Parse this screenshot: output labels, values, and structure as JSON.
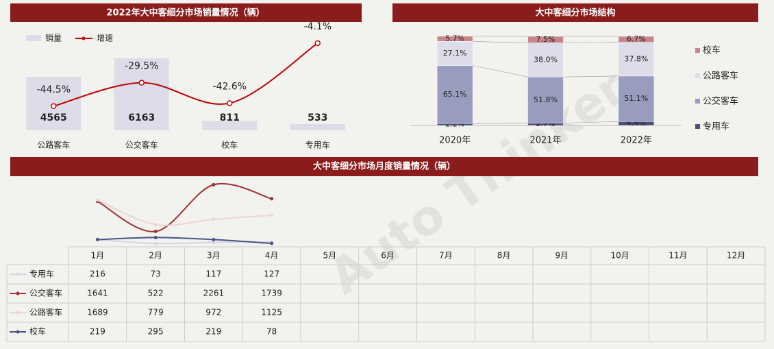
{
  "watermark": "Auto Thinker",
  "chart_data": [
    {
      "type": "bar",
      "title": "2022年大中客细分市场销量情况（辆）",
      "categories": [
        "公路客车",
        "公交客车",
        "校车",
        "专用车"
      ],
      "ylim": [
        0,
        8800
      ],
      "y2lim": [
        -60,
        6
      ],
      "series": [
        {
          "name": "销量",
          "type": "bar",
          "color": "#dcdde8",
          "values": [
            4565,
            6163,
            811,
            533
          ]
        },
        {
          "name": "增速",
          "type": "line",
          "axis": "y2",
          "color": "#c00000",
          "values": [
            -44.5,
            -29.5,
            -42.6,
            -4.1
          ],
          "value_labels": [
            "-44.5%",
            "-29.5%",
            "-42.6%",
            "-4.1%"
          ]
        }
      ]
    },
    {
      "type": "stacked_bar",
      "title": "大中客细分市场结构",
      "categories": [
        "2020年",
        "2021年",
        "2022年"
      ],
      "ylim": [
        0,
        100
      ],
      "series": [
        {
          "name": "专用车",
          "color": "#4a5078",
          "values": [
            2.2,
            2.7,
            4.4
          ],
          "value_labels": [
            "2.2%",
            "2.7%",
            "4.4%"
          ]
        },
        {
          "name": "公交客车",
          "color": "#9a9cbf",
          "values": [
            65.1,
            51.8,
            51.1
          ],
          "value_labels": [
            "65.1%",
            "51.8%",
            "51.1%"
          ]
        },
        {
          "name": "公路客车",
          "color": "#dcdde9",
          "values": [
            27.1,
            38.0,
            37.8
          ],
          "value_labels": [
            "27.1%",
            "38.0%",
            "37.8%"
          ]
        },
        {
          "name": "校车",
          "color": "#c9868a",
          "values": [
            5.7,
            7.5,
            6.7
          ],
          "value_labels": [
            "5.7%",
            "7.5%",
            "6.7%"
          ]
        }
      ]
    },
    {
      "type": "line",
      "title": "大中客细分市场月度销量情况（辆）",
      "categories": [
        "1月",
        "2月",
        "3月",
        "4月",
        "5月",
        "6月",
        "7月",
        "8月",
        "9月",
        "10月",
        "11月",
        "12月"
      ],
      "ylim": [
        0,
        2500
      ],
      "series": [
        {
          "name": "专用车",
          "color": "#d4d5e0",
          "values": [
            216,
            73,
            117,
            127,
            null,
            null,
            null,
            null,
            null,
            null,
            null,
            null
          ]
        },
        {
          "name": "公交客车",
          "color": "#a0302e",
          "values": [
            1641,
            522,
            2261,
            1739,
            null,
            null,
            null,
            null,
            null,
            null,
            null,
            null
          ]
        },
        {
          "name": "公路客车",
          "color": "#eed4d4",
          "values": [
            1689,
            779,
            972,
            1125,
            null,
            null,
            null,
            null,
            null,
            null,
            null,
            null
          ]
        },
        {
          "name": "校车",
          "color": "#4a5485",
          "values": [
            219,
            295,
            219,
            78,
            null,
            null,
            null,
            null,
            null,
            null,
            null,
            null
          ]
        }
      ]
    }
  ]
}
